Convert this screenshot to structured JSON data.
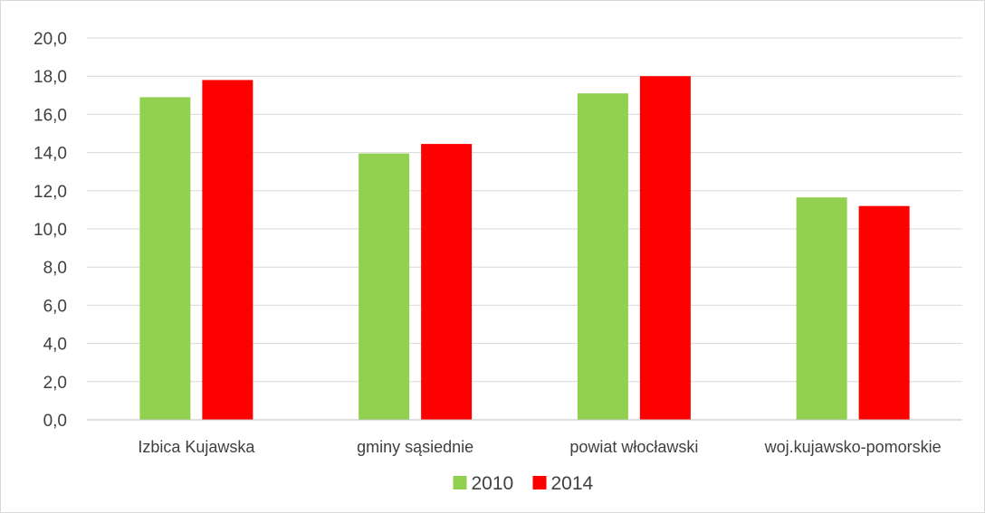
{
  "chart_data": {
    "type": "bar",
    "title": "",
    "xlabel": "",
    "ylabel": "",
    "categories": [
      "Izbica Kujawska",
      "gminy sąsiednie",
      "powiat włocławski",
      "woj.kujawsko-pomorskie"
    ],
    "series": [
      {
        "name": "2010",
        "color": "#92d050",
        "values": [
          16.9,
          13.95,
          17.1,
          11.65
        ]
      },
      {
        "name": "2014",
        "color": "#ff0000",
        "values": [
          17.8,
          14.45,
          18.0,
          11.2
        ]
      }
    ],
    "ylim": [
      0,
      20
    ],
    "ytick_step": 2,
    "ytick_labels": [
      "0,0",
      "2,0",
      "4,0",
      "6,0",
      "8,0",
      "10,0",
      "12,0",
      "14,0",
      "16,0",
      "18,0",
      "20,0"
    ],
    "grid": true,
    "legend_position": "bottom"
  }
}
